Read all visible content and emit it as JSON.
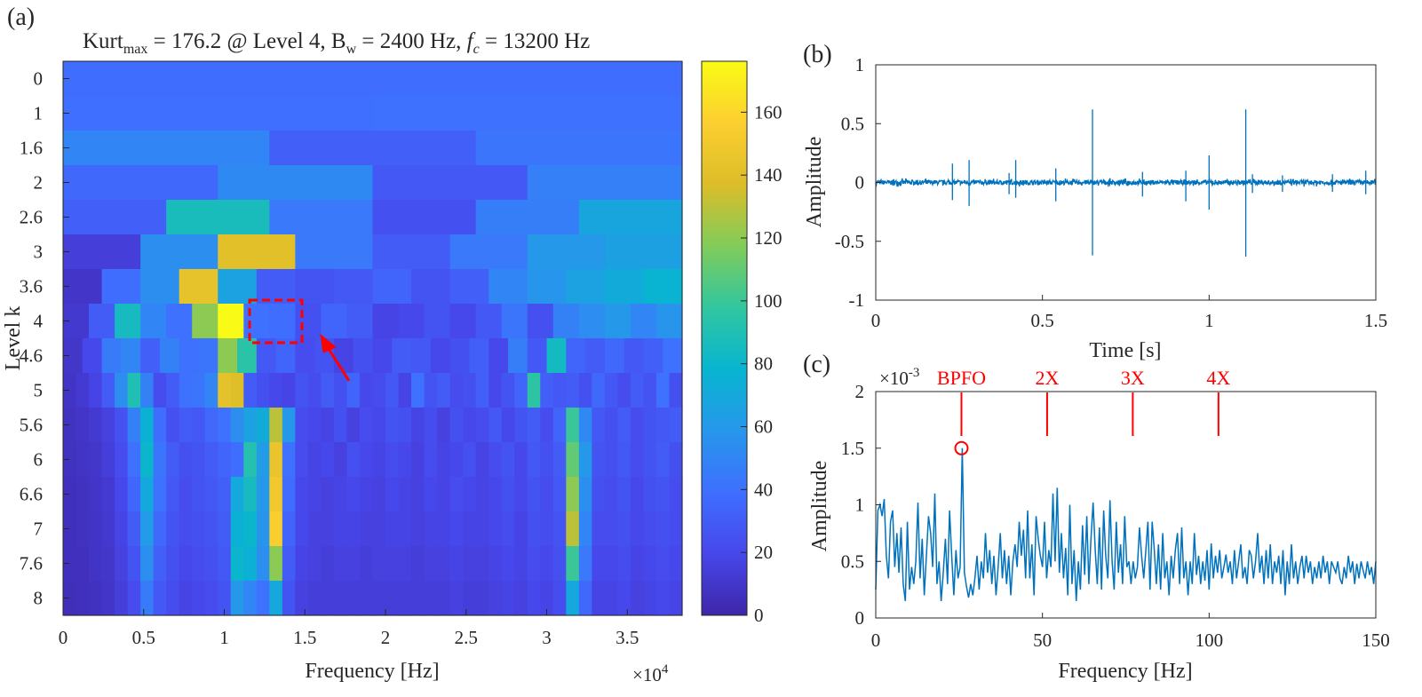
{
  "panel_labels": {
    "a": "(a)",
    "b": "(b)",
    "c": "(c)"
  },
  "colors": {
    "axis": "#262626",
    "line": "#0072bd",
    "annotation": "#ff0000"
  },
  "chart_data": [
    {
      "id": "a",
      "type": "heatmap",
      "title": {
        "prefix": "Kurt",
        "sub": "max",
        "mid": " = 176.2 @ Level 4, B",
        "sub2": "w",
        "mid2": " = 2400 Hz, ",
        "italic": "f",
        "sub3": "c",
        "suffix": " = 13200 Hz"
      },
      "xlabel": "Frequency [Hz]",
      "x_multiplier": "×10",
      "x_multiplier_exp": "4",
      "ylabel": "Level k",
      "xlim": [
        0,
        38400
      ],
      "xticks": [
        "0",
        "0.5",
        "1",
        "1.5",
        "2",
        "2.5",
        "3",
        "3.5"
      ],
      "levels": [
        "0",
        "1",
        "1.6",
        "2",
        "2.6",
        "3",
        "3.6",
        "4",
        "4.6",
        "5",
        "5.6",
        "6",
        "6.6",
        "7",
        "7.6",
        "8"
      ],
      "colorbar": {
        "min": 0,
        "max": 176.2,
        "ticks": [
          "0",
          "20",
          "40",
          "60",
          "80",
          "100",
          "120",
          "140",
          "160"
        ]
      },
      "max_annotation": {
        "level": "4",
        "band_start": 12000,
        "band_end": 14400,
        "value": 176.2
      },
      "rows": [
        [
          38
        ],
        [
          39,
          40
        ],
        [
          50,
          32,
          42
        ],
        [
          36,
          52,
          28,
          47
        ],
        [
          32,
          87,
          44,
          24,
          46,
          68
        ],
        [
          14,
          55,
          140,
          44,
          30,
          44,
          60,
          65
        ],
        [
          9,
          38,
          55,
          143,
          66,
          30,
          26,
          28,
          34,
          26,
          32,
          50,
          58,
          66,
          72,
          78
        ],
        [
          11,
          30,
          85,
          50,
          40,
          120,
          176,
          40,
          38,
          24,
          34,
          30,
          18,
          20,
          26,
          20,
          28,
          42,
          24,
          48,
          54,
          60,
          50,
          58
        ],
        [
          10,
          20,
          45,
          50,
          32,
          48,
          40,
          42,
          120,
          95,
          28,
          34,
          22,
          26,
          18,
          24,
          20,
          30,
          28,
          20,
          24,
          32,
          20,
          46,
          28,
          84,
          34,
          30,
          36,
          28,
          32,
          40
        ],
        [
          8,
          12,
          18,
          30,
          55,
          90,
          48,
          22,
          30,
          40,
          42,
          50,
          142,
          138,
          30,
          24,
          20,
          18,
          26,
          22,
          30,
          24,
          34,
          20,
          22,
          28,
          18,
          40,
          26,
          30,
          22,
          24,
          32,
          20,
          26,
          34,
          96,
          32,
          28,
          30,
          24,
          36,
          28,
          22,
          30,
          26,
          40,
          24
        ],
        [
          7,
          9,
          12,
          16,
          25,
          48,
          75,
          38,
          24,
          30,
          28,
          36,
          40,
          55,
          66,
          72,
          130,
          60,
          22,
          20,
          18,
          24,
          16,
          22,
          20,
          26,
          24,
          18,
          22,
          16,
          24,
          20,
          22,
          28,
          20,
          26,
          30,
          22,
          34,
          100,
          52,
          28,
          24,
          30,
          22,
          26,
          28,
          30
        ],
        [
          7,
          8,
          10,
          14,
          22,
          40,
          80,
          42,
          30,
          24,
          26,
          30,
          34,
          38,
          92,
          62,
          145,
          40,
          22,
          18,
          20,
          16,
          24,
          20,
          18,
          22,
          20,
          16,
          22,
          18,
          20,
          24,
          18,
          22,
          26,
          20,
          28,
          24,
          30,
          110,
          60,
          26,
          24,
          28,
          22,
          26,
          30,
          24
        ],
        [
          6,
          7,
          9,
          12,
          20,
          35,
          70,
          40,
          28,
          22,
          26,
          28,
          32,
          70,
          85,
          60,
          150,
          38,
          20,
          18,
          16,
          18,
          20,
          18,
          16,
          20,
          18,
          16,
          20,
          18,
          22,
          20,
          18,
          20,
          24,
          20,
          26,
          22,
          28,
          120,
          55,
          24,
          22,
          26,
          20,
          24,
          26,
          22
        ],
        [
          6,
          7,
          8,
          11,
          18,
          30,
          62,
          36,
          26,
          22,
          24,
          26,
          30,
          75,
          80,
          58,
          155,
          34,
          20,
          16,
          16,
          18,
          18,
          16,
          16,
          18,
          18,
          16,
          18,
          18,
          20,
          18,
          18,
          20,
          22,
          18,
          24,
          22,
          26,
          130,
          50,
          22,
          22,
          24,
          20,
          22,
          24,
          22
        ],
        [
          6,
          6,
          8,
          10,
          16,
          26,
          55,
          32,
          24,
          20,
          22,
          24,
          28,
          80,
          75,
          55,
          120,
          30,
          18,
          16,
          14,
          16,
          16,
          14,
          16,
          16,
          16,
          14,
          16,
          16,
          18,
          16,
          16,
          18,
          20,
          18,
          22,
          20,
          24,
          100,
          44,
          20,
          20,
          22,
          18,
          20,
          22,
          20
        ],
        [
          5,
          6,
          7,
          9,
          14,
          22,
          45,
          28,
          22,
          18,
          20,
          22,
          26,
          60,
          50,
          40,
          70,
          26,
          16,
          14,
          14,
          14,
          14,
          14,
          14,
          14,
          14,
          14,
          14,
          14,
          16,
          14,
          14,
          16,
          18,
          16,
          20,
          18,
          22,
          70,
          36,
          18,
          18,
          20,
          16,
          18,
          20,
          18
        ]
      ]
    },
    {
      "id": "b",
      "type": "line",
      "xlabel": "Time [s]",
      "ylabel": "Amplitude",
      "xlim": [
        0,
        1.5
      ],
      "ylim": [
        -1,
        1
      ],
      "xticks": [
        "0",
        "0.5",
        "1",
        "1.5"
      ],
      "yticks": [
        "-1",
        "-0.5",
        "0",
        "0.5",
        "1"
      ],
      "noise_level": 0.02,
      "impulses": [
        {
          "t": 0.23,
          "up": 0.16,
          "down": -0.15
        },
        {
          "t": 0.28,
          "up": 0.19,
          "down": -0.2
        },
        {
          "t": 0.4,
          "up": 0.08,
          "down": -0.1
        },
        {
          "t": 0.42,
          "up": 0.19,
          "down": -0.13
        },
        {
          "t": 0.54,
          "up": 0.12,
          "down": -0.16
        },
        {
          "t": 0.65,
          "up": 0.62,
          "down": -0.62
        },
        {
          "t": 0.8,
          "up": 0.09,
          "down": -0.12
        },
        {
          "t": 0.93,
          "up": 0.1,
          "down": -0.16
        },
        {
          "t": 1.0,
          "up": 0.23,
          "down": -0.23
        },
        {
          "t": 1.11,
          "up": 0.62,
          "down": -0.63
        },
        {
          "t": 1.13,
          "up": 0.07,
          "down": -0.09
        },
        {
          "t": 1.22,
          "up": 0.06,
          "down": -0.08
        },
        {
          "t": 1.37,
          "up": 0.07,
          "down": -0.08
        },
        {
          "t": 1.47,
          "up": 0.1,
          "down": -0.1
        }
      ]
    },
    {
      "id": "c",
      "type": "line",
      "xlabel": "Frequency [Hz]",
      "ylabel": "Amplitude",
      "y_multiplier": "×10",
      "y_multiplier_exp": "-3",
      "xlim": [
        0,
        150
      ],
      "ylim": [
        0,
        2
      ],
      "xticks": [
        "0",
        "50",
        "100",
        "150"
      ],
      "yticks": [
        "0",
        "0.5",
        "1",
        "1.5",
        "2"
      ],
      "peak": {
        "x": 25.7,
        "y": 1.5
      },
      "markers": [
        {
          "label": "BPFO",
          "x": 25.7
        },
        {
          "label": "2X",
          "x": 51.4
        },
        {
          "label": "3X",
          "x": 77.1
        },
        {
          "label": "4X",
          "x": 102.8
        }
      ],
      "envelope_spectrum": [
        0.25,
        0.95,
        1.0,
        0.9,
        1.05,
        0.55,
        0.35,
        0.85,
        0.95,
        0.45,
        0.75,
        0.4,
        0.8,
        0.3,
        0.15,
        0.85,
        0.25,
        0.45,
        0.3,
        0.5,
        1.02,
        0.35,
        0.7,
        0.2,
        0.55,
        0.9,
        0.75,
        0.45,
        1.1,
        0.3,
        0.5,
        0.15,
        0.4,
        0.7,
        0.3,
        0.95,
        0.55,
        0.2,
        0.6,
        0.35,
        0.45,
        0.2,
        0.4,
        0.28,
        0.18,
        0.3,
        0.2,
        0.35,
        0.55,
        0.25,
        0.5,
        0.35,
        0.75,
        0.4,
        0.6,
        0.3,
        0.55,
        0.2,
        0.45,
        0.75,
        0.35,
        0.6,
        0.3,
        0.55,
        0.2,
        0.5,
        0.65,
        0.45,
        0.85,
        0.55,
        0.78,
        0.35,
        0.95,
        0.35,
        0.65,
        0.2,
        0.9,
        0.7,
        0.55,
        0.45,
        0.85,
        0.35,
        0.6,
        0.45,
        1.1,
        0.5,
        1.15,
        0.4,
        0.75,
        0.35,
        0.62,
        0.2,
        1.0,
        0.3,
        0.6,
        0.15,
        0.5,
        0.25,
        0.82,
        0.38,
        0.9,
        0.3,
        0.7,
        1.02,
        0.6,
        0.3,
        0.8,
        0.25,
        0.95,
        0.55,
        0.35,
        1.04,
        0.5,
        0.25,
        0.85,
        0.4,
        0.65,
        0.3,
        0.9,
        0.45,
        0.5,
        0.3,
        0.5,
        0.35,
        0.45,
        0.8,
        0.55,
        0.35,
        0.6,
        0.85,
        0.25,
        0.85,
        0.6,
        0.3,
        0.65,
        0.25,
        0.75,
        0.35,
        0.5,
        0.2,
        0.55,
        0.35,
        0.6,
        0.75,
        0.3,
        0.8,
        0.35,
        0.5,
        0.2,
        0.5,
        0.3,
        0.75,
        0.38,
        0.55,
        0.3,
        0.5,
        0.33,
        0.6,
        0.25,
        0.66,
        0.35,
        0.55,
        0.4,
        0.6,
        0.35,
        0.45,
        0.56,
        0.4,
        0.5,
        0.3,
        0.6,
        0.35,
        0.5,
        0.65,
        0.35,
        0.45,
        0.3,
        0.6,
        0.55,
        0.35,
        0.5,
        0.75,
        0.4,
        0.55,
        0.3,
        0.6,
        0.35,
        0.65,
        0.3,
        0.5,
        0.4,
        0.55,
        0.3,
        0.6,
        0.2,
        0.5,
        0.3,
        0.65,
        0.35,
        0.5,
        0.3,
        0.45,
        0.55,
        0.35,
        0.55,
        0.4,
        0.5,
        0.3,
        0.45,
        0.35,
        0.5,
        0.35,
        0.55,
        0.4,
        0.5,
        0.3,
        0.5,
        0.45,
        0.4,
        0.5,
        0.35,
        0.3,
        0.45,
        0.35,
        0.55,
        0.4,
        0.5,
        0.3,
        0.48,
        0.35,
        0.5,
        0.42,
        0.35,
        0.5,
        0.38,
        0.45,
        0.3,
        0.5
      ]
    }
  ]
}
